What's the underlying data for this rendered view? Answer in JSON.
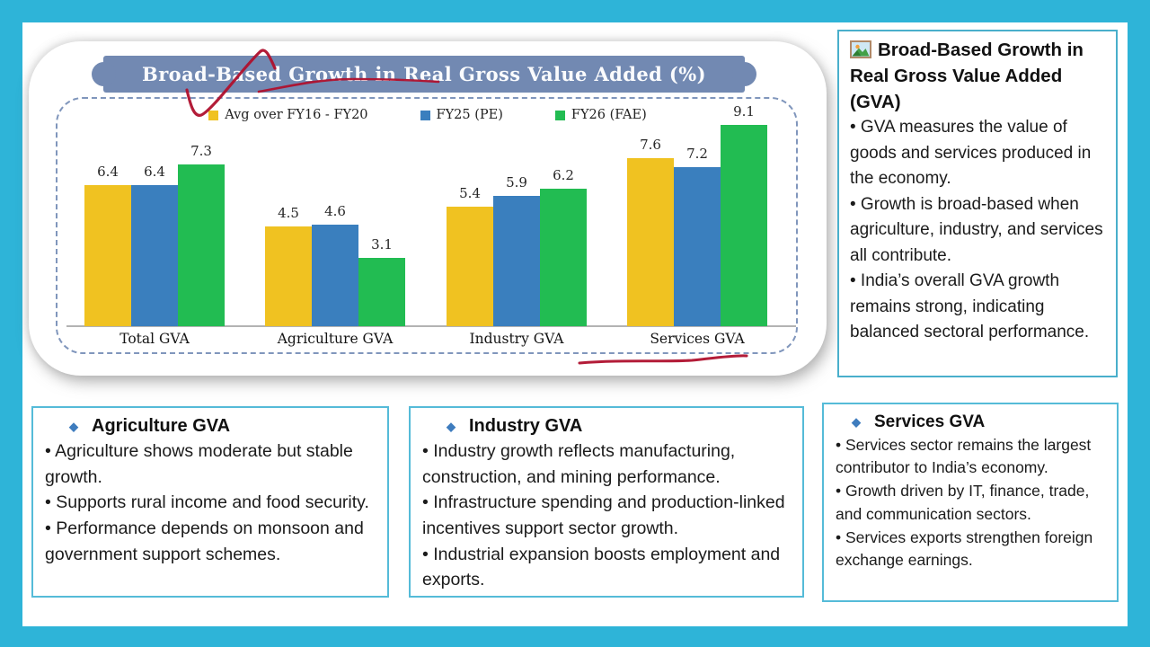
{
  "colors": {
    "background": "#2EB4D8",
    "slide_bg": "#FFFFFF",
    "banner": "#7289B2",
    "banner_text": "#FAFBFD",
    "dashed_border": "#8096BC",
    "axis": "#A6A6A6",
    "annotation_red": "#AF102D",
    "panel_border": "#49AFCB",
    "box_border": "#55BBD8",
    "diamond_blue": "#3E7CBE",
    "text": "#1C1C1C"
  },
  "icons": {
    "diamond": "◆",
    "info_panel_icon": "framed-picture"
  },
  "chart_data": {
    "type": "bar",
    "title": "Broad-Based Growth in Real Gross Value Added (%)",
    "categories": [
      "Total GVA",
      "Agriculture GVA",
      "Industry GVA",
      "Services GVA"
    ],
    "series": [
      {
        "name": "Avg over FY16 - FY20",
        "color": "#F0C221",
        "values": [
          6.4,
          4.5,
          5.4,
          7.6
        ]
      },
      {
        "name": "FY25 (PE)",
        "color": "#3A7FBE",
        "values": [
          6.4,
          4.6,
          5.9,
          7.2
        ]
      },
      {
        "name": "FY26 (FAE)",
        "color": "#22BC52",
        "values": [
          7.3,
          3.1,
          6.2,
          9.1
        ]
      }
    ],
    "ylim": [
      0,
      10
    ],
    "grid": false,
    "data_labels": true,
    "legend_position": "top",
    "annotations": [
      "red check scribble over title",
      "red underline under title",
      "red underline under Services GVA"
    ]
  },
  "info_panel": {
    "heading": "Broad-Based Growth in Real Gross Value Added (GVA)",
    "bullets": [
      "• GVA measures the value of goods and services produced in the economy.",
      "• Growth is broad-based when agriculture, industry, and services all contribute.",
      "• India’s overall GVA growth remains strong, indicating balanced sectoral performance."
    ]
  },
  "boxes": [
    {
      "heading": "Agriculture GVA",
      "bullets": [
        "• Agriculture shows moderate but stable growth.",
        "• Supports rural income and food security.",
        "• Performance depends on monsoon and government support schemes."
      ]
    },
    {
      "heading": "Industry GVA",
      "bullets": [
        "• Industry growth reflects manufacturing, construction, and mining performance.",
        "• Infrastructure spending and production-linked incentives support sector growth.",
        "• Industrial expansion boosts employment and exports."
      ]
    },
    {
      "heading": "Services GVA",
      "bullets": [
        "• Services sector remains the largest contributor to India’s economy.",
        "• Growth driven by IT, finance, trade, and communication sectors.",
        "• Services exports strengthen foreign exchange earnings."
      ]
    }
  ]
}
